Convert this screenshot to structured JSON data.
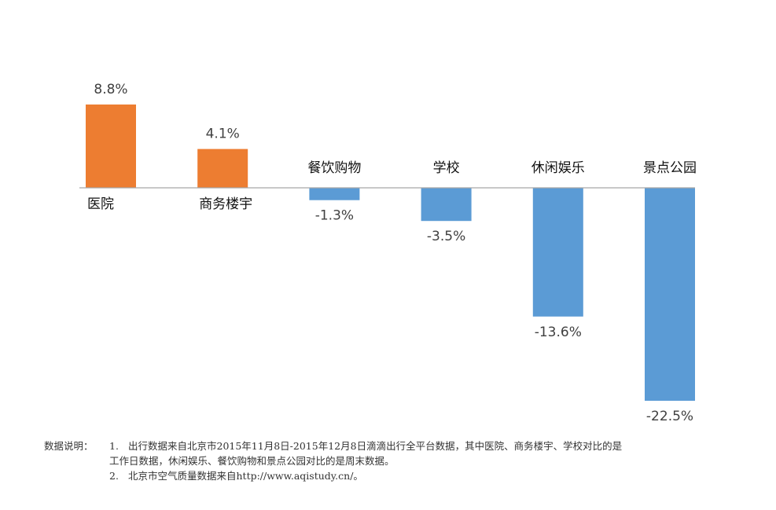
{
  "chart_data": {
    "type": "bar",
    "categories": [
      "医院",
      "商务楼宇",
      "餐饮购物",
      "学校",
      "休闲娱乐",
      "景点公园"
    ],
    "values": [
      8.8,
      4.1,
      -1.3,
      -3.5,
      -13.6,
      -22.5
    ],
    "value_labels": [
      "8.8%",
      "4.1%",
      "-1.3%",
      "-3.5%",
      "-13.6%",
      "-22.5%"
    ],
    "unit": "%",
    "ylim": [
      -22.5,
      8.8
    ],
    "grid": false,
    "legend": "none",
    "colors": {
      "positive": "#ED7D31",
      "negative": "#5B9BD5",
      "axis": "#A6A6A6"
    }
  },
  "footnote": {
    "prefix": "数据说明：",
    "items": [
      {
        "num": "1.",
        "line1": "出行数据来自北京市2015年11月8日-2015年12月8日滴滴出行全平台数据，其中医院、商务楼宇、学校对比的是",
        "line2": "工作日数据，休闲娱乐、餐饮购物和景点公园对比的是周末数据。"
      },
      {
        "num": "2.",
        "line1": "北京市空气质量数据来自http://www.aqistudy.cn/。"
      }
    ]
  }
}
